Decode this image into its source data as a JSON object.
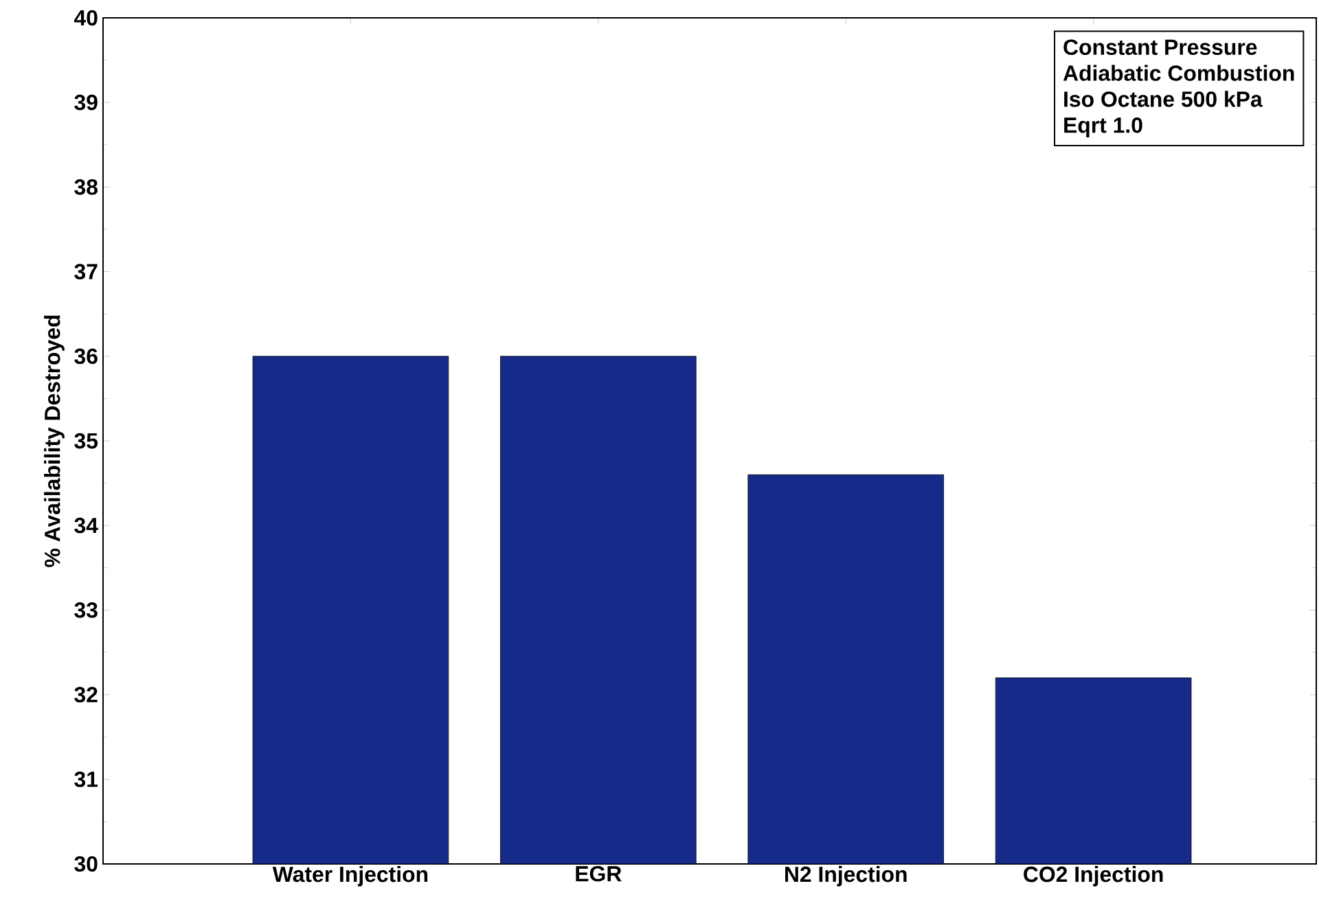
{
  "chart_data": {
    "type": "bar",
    "ylabel": "% Availability Destroyed",
    "categories": [
      "Water Injection",
      "EGR",
      "N2 Injection",
      "CO2 Injection"
    ],
    "values": [
      36.0,
      36.0,
      34.6,
      32.2
    ],
    "color": "#162a8a",
    "ylim": [
      30,
      40
    ],
    "yticks": [
      30,
      31,
      32,
      33,
      34,
      35,
      36,
      37,
      38,
      39,
      40
    ],
    "annotations": [
      "Constant Pressure",
      "Adiabatic Combustion",
      "Iso Octane 500 kPa",
      "Eqrt 1.0"
    ]
  }
}
